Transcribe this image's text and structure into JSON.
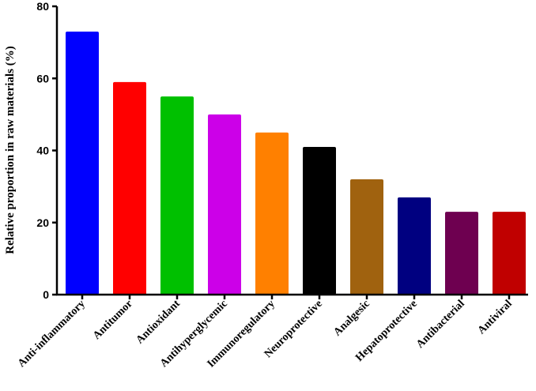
{
  "chart_data": {
    "type": "bar",
    "ylabel": "Relative proportion in raw materials (%)",
    "xlabel": "",
    "ylim": [
      0,
      80
    ],
    "yticks": [
      "0",
      "20",
      "40",
      "60",
      "80"
    ],
    "grid": false,
    "categories": [
      "Anti-inflammatory",
      "Antitumor",
      "Antioxidant",
      "Antihyperglycemic",
      "Immunoregulatory",
      "Neuroprotective",
      "Analgesic",
      "Hepatoprotective",
      "Antibacterial",
      "Antiviral"
    ],
    "values": [
      73,
      59,
      55,
      50,
      45,
      41,
      32,
      27,
      23,
      23
    ],
    "colors": [
      "#0000ff",
      "#ff0000",
      "#00c000",
      "#cc00e8",
      "#ff8000",
      "#000000",
      "#a0620f",
      "#000080",
      "#6e0050",
      "#c00000"
    ]
  }
}
